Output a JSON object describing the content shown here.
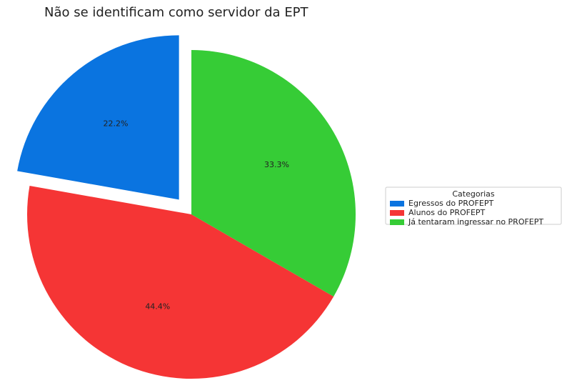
{
  "chart_data": {
    "type": "pie",
    "title": "Não se identificam como servidor da EPT",
    "categories": [
      "Egressos do PROFEPT",
      "Alunos do PROFEPT",
      "Já tentaram ingressar no PROFEPT"
    ],
    "values": [
      22.2,
      44.4,
      33.3
    ],
    "value_labels": [
      "22.2%",
      "44.4%",
      "33.3%"
    ],
    "colors": [
      "#0a74e0",
      "#f53535",
      "#36cc36"
    ],
    "legend_title": "Categorias",
    "legend": "right"
  }
}
